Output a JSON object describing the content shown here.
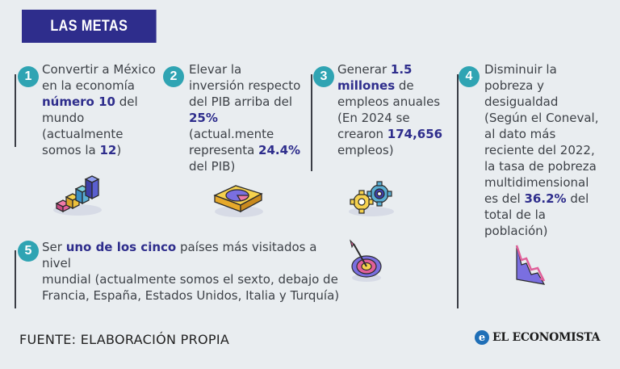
{
  "header": {
    "title": "LAS METAS"
  },
  "goals": [
    {
      "number": "1",
      "lines": [
        [
          {
            "t": "Convertir a México"
          }
        ],
        [
          {
            "t": "en la economía"
          }
        ],
        [
          {
            "t": "número 10",
            "b": true
          },
          {
            "t": " del"
          }
        ],
        [
          {
            "t": "mundo"
          }
        ],
        [
          {
            "t": "(actualmente"
          }
        ],
        [
          {
            "t": "somos la "
          },
          {
            "t": "12",
            "b": true
          },
          {
            "t": ")"
          }
        ]
      ],
      "icon": "bar-chart-icon"
    },
    {
      "number": "2",
      "lines": [
        [
          {
            "t": "Elevar la"
          }
        ],
        [
          {
            "t": "inversión respecto"
          }
        ],
        [
          {
            "t": "del PIB arriba del"
          }
        ],
        [
          {
            "t": "25%",
            "b": true
          }
        ],
        [
          {
            "t": "(actual.mente"
          }
        ],
        [
          {
            "t": "representa "
          },
          {
            "t": "24.4%",
            "b": true
          }
        ],
        [
          {
            "t": "del PIB)"
          }
        ]
      ],
      "icon": "pie-chart-icon"
    },
    {
      "number": "3",
      "lines": [
        [
          {
            "t": "Generar "
          },
          {
            "t": "1.5",
            "b": true
          }
        ],
        [
          {
            "t": "millones",
            "b": true
          },
          {
            "t": " de"
          }
        ],
        [
          {
            "t": "empleos anuales"
          }
        ],
        [
          {
            "t": "(En 2024  se"
          }
        ],
        [
          {
            "t": "crearon "
          },
          {
            "t": "174,656",
            "b": true
          }
        ],
        [
          {
            "t": "empleos)"
          }
        ]
      ],
      "icon": "gears-icon"
    },
    {
      "number": "4",
      "lines": [
        [
          {
            "t": "Disminuir la"
          }
        ],
        [
          {
            "t": "pobreza y"
          }
        ],
        [
          {
            "t": "desigualdad"
          }
        ],
        [
          {
            "t": "(Según el Coneval,"
          }
        ],
        [
          {
            "t": "al dato más"
          }
        ],
        [
          {
            "t": "reciente del 2022,"
          }
        ],
        [
          {
            "t": "la tasa de pobreza"
          }
        ],
        [
          {
            "t": "multidimensional"
          }
        ],
        [
          {
            "t": "es del "
          },
          {
            "t": "36.2%",
            "b": true
          },
          {
            "t": " del"
          }
        ],
        [
          {
            "t": "total de la"
          }
        ],
        [
          {
            "t": "población)"
          }
        ]
      ],
      "icon": "declining-chart-icon"
    },
    {
      "number": "5",
      "lines": [
        [
          {
            "t": "Ser "
          },
          {
            "t": "uno de los cinco",
            "b": true
          },
          {
            "t": " países más visitados a nivel"
          }
        ],
        [
          {
            "t": "mundial (actualmente somos el sexto, debajo de"
          }
        ],
        [
          {
            "t": "Francia, España, Estados Unidos, Italia y Turquía)"
          }
        ]
      ],
      "icon": "target-icon"
    }
  ],
  "footer": {
    "source": "FUENTE: ELABORACIÓN PROPIA",
    "brand": "EL ECONOMISTA"
  }
}
